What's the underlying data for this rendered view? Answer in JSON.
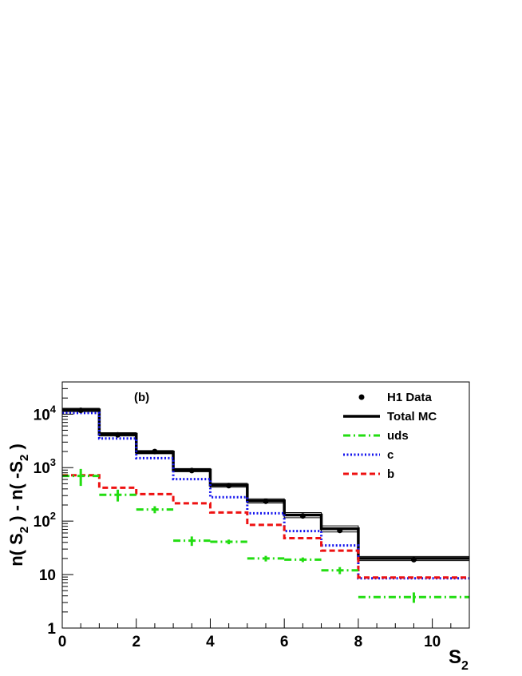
{
  "chart_data": {
    "type": "histogram",
    "panel_label": "(b)",
    "xlabel": "S",
    "xlabel_sub": "2",
    "ylabel_parts": [
      "n( S",
      "2",
      " ) - n( -S",
      "2",
      " )"
    ],
    "x_scale": "linear",
    "y_scale": "log",
    "xlim": [
      0,
      11
    ],
    "ylim": [
      1,
      40000
    ],
    "x_ticks": [
      0,
      2,
      4,
      6,
      8,
      10
    ],
    "y_ticks": [
      {
        "value": 1,
        "label": "1",
        "exp": ""
      },
      {
        "value": 10,
        "label": "10",
        "exp": ""
      },
      {
        "value": 100,
        "label": "10",
        "exp": "2"
      },
      {
        "value": 1000,
        "label": "10",
        "exp": "3"
      },
      {
        "value": 10000,
        "label": "10",
        "exp": "4"
      }
    ],
    "bin_edges": [
      0,
      1,
      2,
      3,
      4,
      5,
      6,
      7,
      8,
      11
    ],
    "series": [
      {
        "name": "Total MC",
        "style": "hist",
        "color": "#000000",
        "dash": "",
        "width": 3.5,
        "values": [
          12000,
          4200,
          1950,
          900,
          470,
          240,
          130,
          72,
          20
        ],
        "error_band": [
          0.07,
          0.07,
          0.07,
          0.07,
          0.08,
          0.09,
          0.11,
          0.13,
          0.09
        ]
      },
      {
        "name": "uds",
        "style": "crosses",
        "color": "#22dd11",
        "dash": "9,4,2,4",
        "width": 3,
        "values": [
          700,
          310,
          165,
          43,
          41,
          20,
          19,
          12,
          3.8
        ],
        "errors": [
          0.35,
          0.25,
          0.15,
          0.2,
          0.1,
          0.12,
          0.1,
          0.15,
          0.22
        ]
      },
      {
        "name": "c",
        "style": "hist",
        "color": "#1111ee",
        "dash": "2,2.5",
        "width": 3,
        "values": [
          10500,
          3500,
          1500,
          610,
          280,
          140,
          65,
          35,
          8.5
        ]
      },
      {
        "name": "b",
        "style": "hist",
        "color": "#ee1111",
        "dash": "7,4",
        "width": 3,
        "values": [
          720,
          420,
          320,
          215,
          145,
          85,
          48,
          28,
          8.8
        ]
      },
      {
        "name": "H1 Data",
        "style": "points",
        "color": "#000000",
        "x": [
          0.5,
          1.5,
          2.5,
          3.5,
          4.5,
          5.5,
          6.5,
          7.5,
          9.5
        ],
        "values": [
          11800,
          4100,
          2000,
          880,
          460,
          235,
          125,
          67,
          19
        ]
      }
    ],
    "legend": {
      "placement": "top-right",
      "entries": [
        {
          "name": "H1 Data",
          "kind": "marker"
        },
        {
          "name": "Total MC",
          "kind": "line"
        },
        {
          "name": "uds",
          "kind": "line"
        },
        {
          "name": "c",
          "kind": "line"
        },
        {
          "name": "b",
          "kind": "line"
        }
      ]
    }
  }
}
